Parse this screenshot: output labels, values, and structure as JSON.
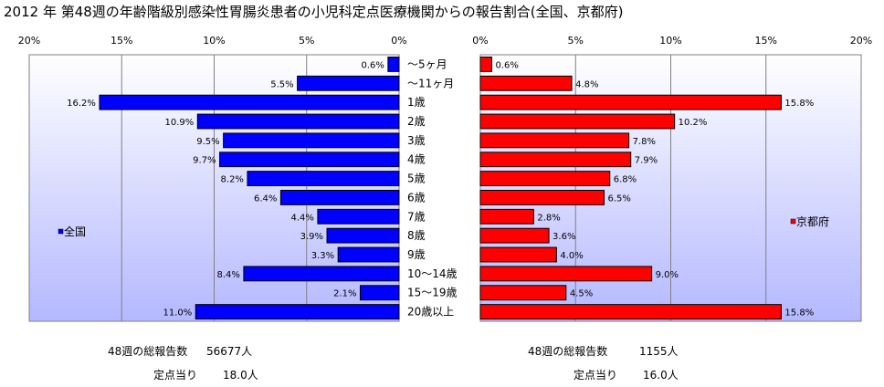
{
  "title": "2012 年 第48週の年齢階級別感染性胃腸炎患者の小児科定点医療機関からの報告割合(全国、京都府)",
  "colors": {
    "national_bar": "#0000ff",
    "kyoto_bar": "#ff0000",
    "plot_bg_top": "#ffffff",
    "plot_bg_bottom": "#b4b8ff"
  },
  "chart_data": {
    "type": "bar",
    "orientation": "horizontal-butterfly",
    "categories": [
      "〜5ヶ月",
      "〜11ヶ月",
      "1歳",
      "2歳",
      "3歳",
      "4歳",
      "5歳",
      "6歳",
      "7歳",
      "8歳",
      "9歳",
      "10〜14歳",
      "15〜19歳",
      "20歳以上"
    ],
    "x_ticks_left": [
      "20%",
      "15%",
      "10%",
      "5%",
      "0%"
    ],
    "x_ticks_right": [
      "0%",
      "5%",
      "10%",
      "15%",
      "20%"
    ],
    "xlim": [
      0,
      20
    ],
    "grid": true,
    "series": [
      {
        "name": "全国",
        "side": "left",
        "values": [
          0.6,
          5.5,
          16.2,
          10.9,
          9.5,
          9.7,
          8.2,
          6.4,
          4.4,
          3.9,
          3.3,
          8.4,
          2.1,
          11.0
        ],
        "labels": [
          "0.6%",
          "5.5%",
          "16.2%",
          "10.9%",
          "9.5%",
          "9.7%",
          "8.2%",
          "6.4%",
          "4.4%",
          "3.9%",
          "3.3%",
          "8.4%",
          "2.1%",
          "11.0%"
        ]
      },
      {
        "name": "京都府",
        "side": "right",
        "values": [
          0.6,
          4.8,
          15.8,
          10.2,
          7.8,
          7.9,
          6.8,
          6.5,
          2.8,
          3.6,
          4.0,
          9.0,
          4.5,
          15.8
        ],
        "labels": [
          "0.6%",
          "4.8%",
          "15.8%",
          "10.2%",
          "7.8%",
          "7.9%",
          "6.8%",
          "6.5%",
          "2.8%",
          "3.6%",
          "4.0%",
          "9.0%",
          "4.5%",
          "15.8%"
        ]
      }
    ]
  },
  "summary": {
    "national": {
      "total_label": "48週の総報告数",
      "total_value": "56677人",
      "per_site_label": "定点当り",
      "per_site_value": "18.0人"
    },
    "kyoto": {
      "total_label": "48週の総報告数",
      "total_value": "1155人",
      "per_site_label": "定点当り",
      "per_site_value": "16.0人"
    }
  }
}
